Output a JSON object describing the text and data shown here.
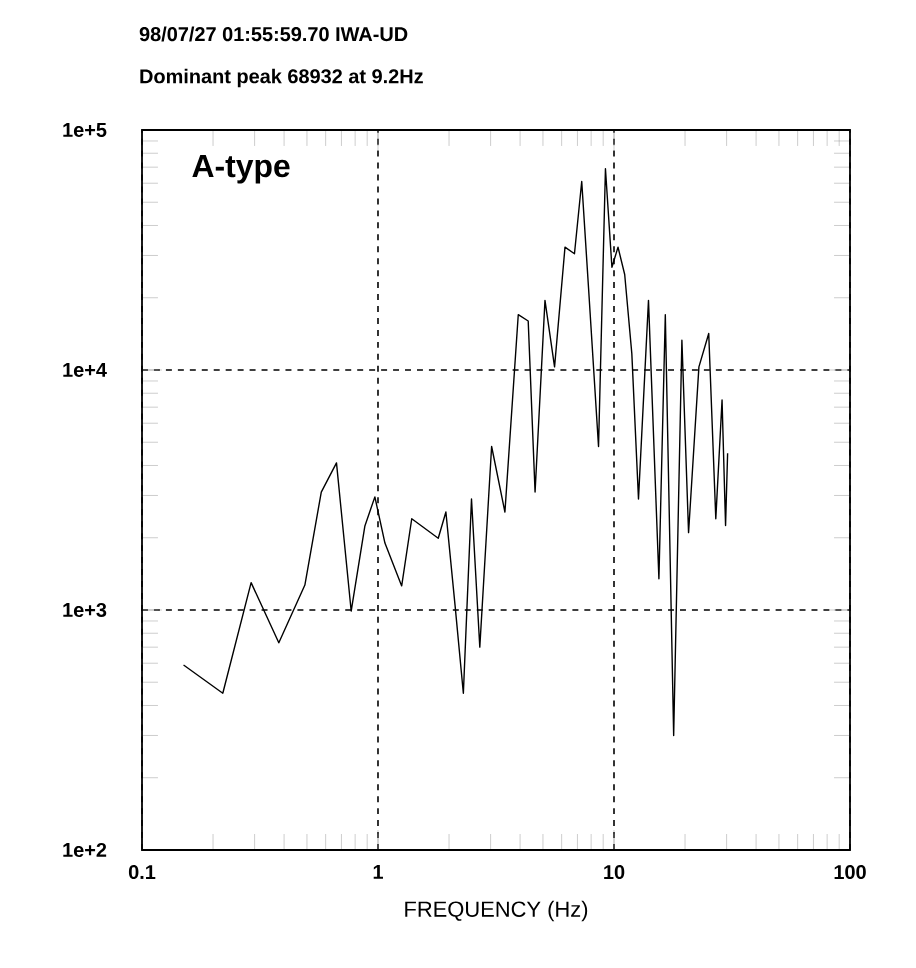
{
  "chart_data": {
    "type": "line",
    "title": "98/07/27 01:55:59.70   IWA-UD",
    "subtitle": "Dominant peak 68932 at 9.2Hz",
    "xlabel": "FREQUENCY (Hz)",
    "annotations": [
      "A-type"
    ],
    "x": [
      0.15,
      0.22,
      0.29,
      0.38,
      0.49,
      0.575,
      0.667,
      0.77,
      0.88,
      0.97,
      1.07,
      1.26,
      1.39,
      1.8,
      1.94,
      2.12,
      2.3,
      2.49,
      2.7,
      3.03,
      3.45,
      3.93,
      4.33,
      4.63,
      5.1,
      5.6,
      6.2,
      6.8,
      7.3,
      7.8,
      8.6,
      9.2,
      9.8,
      10.4,
      11.1,
      11.9,
      12.7,
      14.0,
      15.5,
      16.5,
      17.9,
      19.4,
      20.7,
      22.9,
      25.2,
      27,
      28.7,
      29.7,
      30.3
    ],
    "values": [
      590,
      450,
      1300,
      730,
      1270,
      3100,
      4100,
      990,
      2240,
      2960,
      1900,
      1260,
      2400,
      1990,
      2560,
      1050,
      450,
      2900,
      700,
      4800,
      2560,
      17000,
      16000,
      3100,
      19500,
      10300,
      32500,
      30500,
      61000,
      22000,
      4800,
      68932,
      26800,
      32500,
      25000,
      11700,
      2900,
      19500,
      1350,
      17000,
      300,
      13300,
      2100,
      10300,
      14200,
      2400,
      7500,
      2250,
      4500
    ],
    "color": "#000000",
    "xlim": [
      0.1,
      100
    ],
    "ylim": [
      100,
      100000
    ],
    "xticks": [
      0.1,
      1,
      10,
      100
    ],
    "yticks": [
      {
        "value": 100,
        "label": "1e+2"
      },
      {
        "value": 1000,
        "label": "1e+3"
      },
      {
        "value": 10000,
        "label": "1e+4"
      },
      {
        "value": 100000,
        "label": "1e+5"
      }
    ],
    "log": "xy",
    "grid": true
  }
}
